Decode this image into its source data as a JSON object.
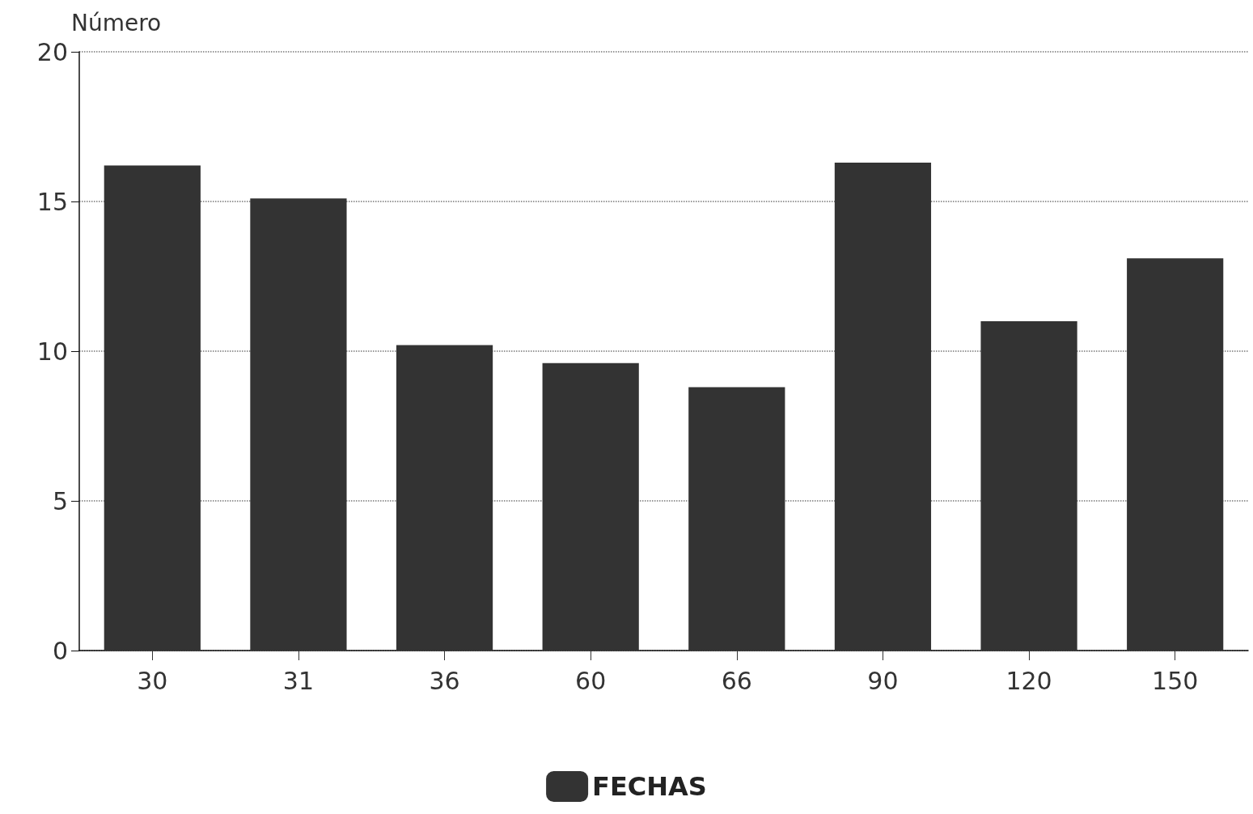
{
  "chart_data": {
    "type": "bar",
    "ylabel": "Número",
    "categories": [
      "30",
      "31",
      "36",
      "60",
      "66",
      "90",
      "120",
      "150"
    ],
    "series": [
      {
        "name": "FECHAS",
        "color": "#333333",
        "values": [
          16.2,
          15.1,
          10.2,
          9.6,
          8.8,
          16.3,
          11.0,
          13.1
        ]
      }
    ],
    "ylim": [
      0,
      20
    ],
    "yticks": [
      0,
      5,
      10,
      15,
      20
    ],
    "grid": "y",
    "legend": "bottom"
  }
}
